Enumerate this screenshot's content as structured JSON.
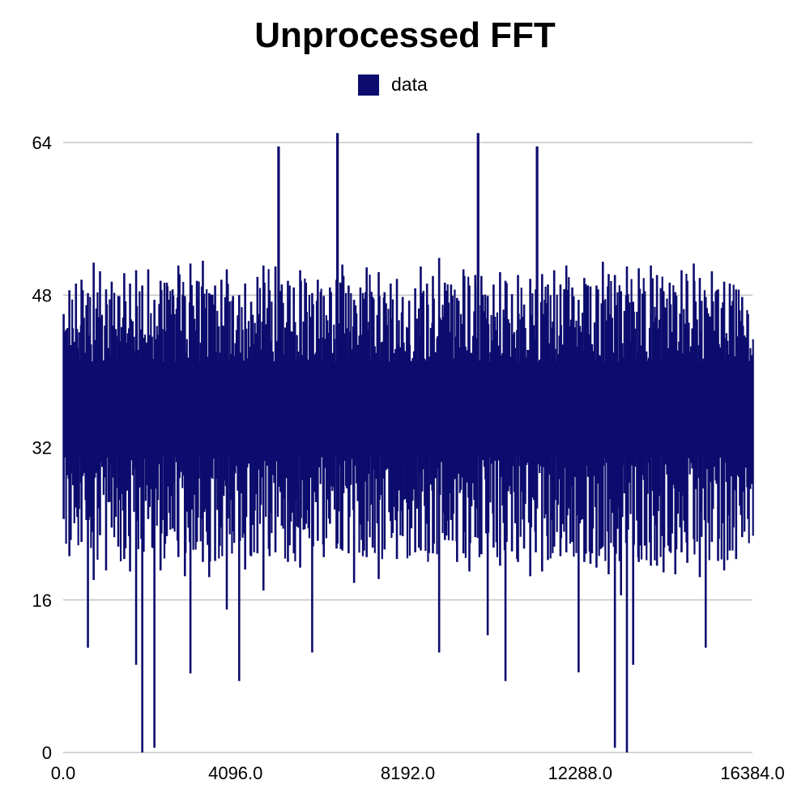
{
  "chart_data": {
    "type": "bar",
    "title": "Unprocessed FFT",
    "xlabel": "",
    "ylabel": "",
    "xlim": [
      0,
      16384
    ],
    "ylim": [
      0,
      64
    ],
    "x_ticks": [
      "0.0",
      "4096.0",
      "8192.0",
      "12288.0",
      "16384.0"
    ],
    "y_ticks": [
      "0",
      "16",
      "32",
      "48",
      "64"
    ],
    "grid": "horizontal",
    "legend": {
      "position": "top-center",
      "entries": [
        "data"
      ]
    },
    "colors": {
      "series": "#0c0c6e",
      "grid": "#aaaaaa"
    },
    "series": [
      {
        "name": "data",
        "x": [
          0,
          144,
          288,
          432,
          576,
          720,
          864,
          1008,
          1152,
          1296,
          1440,
          1584,
          1728,
          1872,
          2016,
          2160,
          2304,
          2448,
          2592,
          2736,
          2880,
          3024,
          3168,
          3312,
          3456,
          3600,
          3744,
          3888,
          4032,
          4176,
          4320,
          4464,
          4608,
          4752,
          4896,
          5040,
          5184,
          5328,
          5472,
          5616,
          5760,
          5904,
          6048,
          6192,
          6336,
          6480,
          6624,
          6768,
          6912,
          7056,
          7200,
          7344,
          7488,
          7632,
          7776,
          7920,
          8064,
          8208,
          8352,
          8496,
          8640,
          8784,
          8928,
          9072,
          9216,
          9360,
          9504,
          9648,
          9792,
          9936,
          10080,
          10224,
          10368,
          10512,
          10656,
          10800,
          10944,
          11088,
          11232,
          11376,
          11520,
          11664,
          11808,
          11952,
          12096,
          12240,
          12384,
          12528,
          12672,
          12816,
          12960,
          13104,
          13248,
          13392,
          13536,
          13680,
          13824,
          13968,
          14112,
          14256,
          14400,
          14544,
          14688,
          14832,
          14976,
          15120,
          15264,
          15408,
          15552,
          15696,
          15840,
          15984,
          16128,
          16272
        ],
        "low": [
          24.5,
          20.6,
          25.7,
          22.1,
          11.0,
          18.1,
          22.8,
          19.1,
          23.6,
          21.6,
          20.3,
          19.0,
          9.2,
          0.0,
          24.5,
          0.5,
          19.1,
          22.7,
          23.5,
          20.5,
          18.5,
          8.3,
          22.1,
          20.0,
          18.4,
          20.1,
          23.6,
          15.0,
          23.2,
          7.5,
          19.2,
          20.6,
          20.9,
          17.0,
          20.6,
          21.0,
          23.8,
          20.0,
          20.9,
          19.4,
          24.0,
          10.5,
          22.2,
          20.5,
          24.0,
          21.4,
          21.2,
          20.9,
          17.8,
          23.9,
          20.5,
          21.5,
          18.2,
          21.3,
          24.3,
          20.3,
          22.7,
          25.5,
          21.0,
          21.2,
          24.0,
          20.9,
          10.5,
          22.3,
          24.4,
          20.0,
          20.9,
          19.0,
          22.6,
          20.8,
          12.3,
          21.5,
          19.6,
          7.5,
          21.1,
          20.0,
          21.4,
          18.5,
          21.0,
          19.0,
          20.2,
          21.6,
          20.6,
          21.0,
          22.1,
          8.4,
          20.0,
          19.8,
          19.4,
          21.6,
          18.7,
          0.5,
          16.5,
          0.0,
          9.2,
          20.0,
          21.7,
          19.6,
          19.6,
          18.9,
          21.1,
          18.7,
          21.0,
          19.9,
          22.4,
          18.4,
          11.0,
          22.1,
          20.1,
          19.1,
          21.2,
          20.3,
          22.6,
          24.5
        ],
        "high": [
          46.0,
          48.5,
          49.2,
          49.6,
          48.2,
          51.4,
          50.5,
          48.6,
          49.4,
          47.9,
          50.3,
          49.2,
          50.6,
          49.0,
          50.7,
          47.5,
          49.5,
          49.3,
          48.6,
          51.1,
          47.9,
          51.3,
          49.5,
          51.6,
          48.2,
          49.0,
          49.6,
          50.7,
          47.9,
          48.0,
          49.2,
          47.3,
          49.9,
          51.1,
          48.5,
          51.0,
          49.1,
          49.5,
          48.8,
          50.6,
          49.3,
          48.2,
          49.6,
          47.9,
          48.8,
          49.6,
          51.2,
          49.0,
          47.5,
          48.8,
          50.9,
          47.8,
          50.4,
          48.3,
          49.2,
          49.7,
          47.8,
          47.4,
          48.7,
          51.0,
          49.2,
          50.0,
          51.9,
          49.3,
          49.1,
          47.7,
          50.7,
          49.0,
          50.1,
          50.0,
          47.9,
          49.1,
          50.4,
          49.5,
          48.1,
          50.1,
          47.0,
          49.7,
          48.6,
          50.2,
          49.1,
          50.6,
          49.1,
          51.1,
          48.8,
          47.5,
          49.8,
          48.9,
          49.0,
          51.5,
          50.2,
          50.1,
          48.4,
          51.0,
          47.3,
          50.8,
          48.4,
          51.1,
          50.1,
          48.4,
          49.3,
          48.3,
          50.6,
          49.5,
          51.3,
          49.8,
          47.8,
          50.5,
          48.6,
          49.4,
          49.2,
          48.6,
          47.8,
          46.0
        ],
        "spikes": [
          {
            "x": 5120,
            "y": 63.6
          },
          {
            "x": 6520,
            "y": 65.0
          },
          {
            "x": 9862,
            "y": 65.0
          },
          {
            "x": 11264,
            "y": 63.6
          }
        ]
      }
    ]
  }
}
